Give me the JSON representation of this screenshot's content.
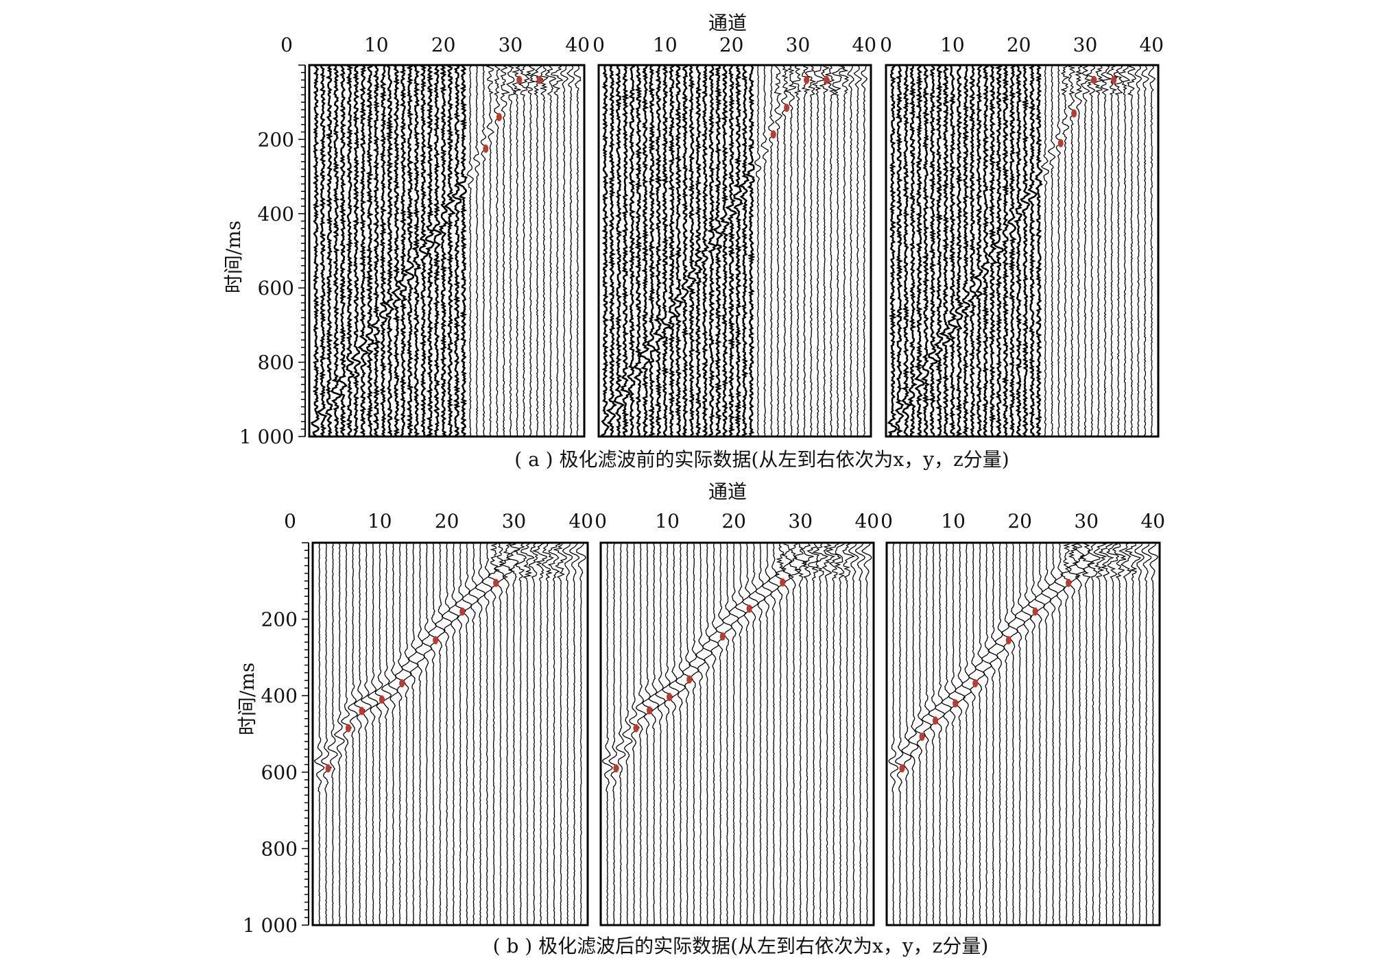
{
  "figure": {
    "top_xlabel": "通道",
    "bottom_xlabel": "通道",
    "top_ylabel": "时间/ms",
    "bottom_ylabel": "时间/ms",
    "caption_a": "( a ) 极化滤波前的实际数据(从左到右依次为x，y，z分量)",
    "caption_b": "( b ) 极化滤波后的实际数据(从左到右依次为x，y，z分量)"
  },
  "chart_data": [
    {
      "type": "seismic-wiggle",
      "title": "( a ) 极化滤波前的实际数据(从左到右依次为x，y，z分量)",
      "xlabel": "通道",
      "ylabel": "时间/ms",
      "x_ticks": [
        0,
        10,
        20,
        30,
        40
      ],
      "y_ticks": [
        200,
        400,
        600,
        800,
        1000
      ],
      "y_tick_labels": [
        "200",
        "400",
        "600",
        "800",
        "1 000"
      ],
      "xlim": [
        0,
        41
      ],
      "ylim": [
        0,
        1000
      ],
      "y_reversed": true,
      "channels": 40,
      "series": [
        {
          "name": "x",
          "first_break_ms": {
            "channel_0": 1000,
            "channel_24": 300,
            "channel_28": 130,
            "channel_31": 30
          }
        },
        {
          "name": "y",
          "first_break_ms": {
            "channel_0": 1000,
            "channel_24": 270,
            "channel_27": 130,
            "channel_31": 30
          }
        },
        {
          "name": "z",
          "first_break_ms": {
            "channel_0": 1000,
            "channel_24": 280,
            "channel_28": 120,
            "channel_31": 30
          }
        }
      ]
    },
    {
      "type": "seismic-wiggle",
      "title": "( b ) 极化滤波后的实际数据(从左到右依次为x，y，z分量)",
      "xlabel": "通道",
      "ylabel": "时间/ms",
      "x_ticks": [
        0,
        10,
        20,
        30,
        40
      ],
      "y_ticks": [
        200,
        400,
        600,
        800,
        1000
      ],
      "y_tick_labels": [
        "200",
        "400",
        "600",
        "800",
        "1 000"
      ],
      "xlim": [
        0,
        41
      ],
      "ylim": [
        0,
        1000
      ],
      "y_reversed": true,
      "channels": 40,
      "series": [
        {
          "name": "x",
          "first_break_ms": {
            "channel_2": 580,
            "channel_6": 440,
            "channel_12": 380,
            "channel_20": 200,
            "channel_28": 80,
            "channel_31": 30
          }
        },
        {
          "name": "y",
          "first_break_ms": {
            "channel_2": 580,
            "channel_6": 440,
            "channel_12": 370,
            "channel_20": 190,
            "channel_28": 80,
            "channel_31": 30
          }
        },
        {
          "name": "z",
          "first_break_ms": {
            "channel_2": 580,
            "channel_6": 470,
            "channel_12": 380,
            "channel_20": 200,
            "channel_28": 80,
            "channel_31": 30
          }
        }
      ]
    }
  ]
}
